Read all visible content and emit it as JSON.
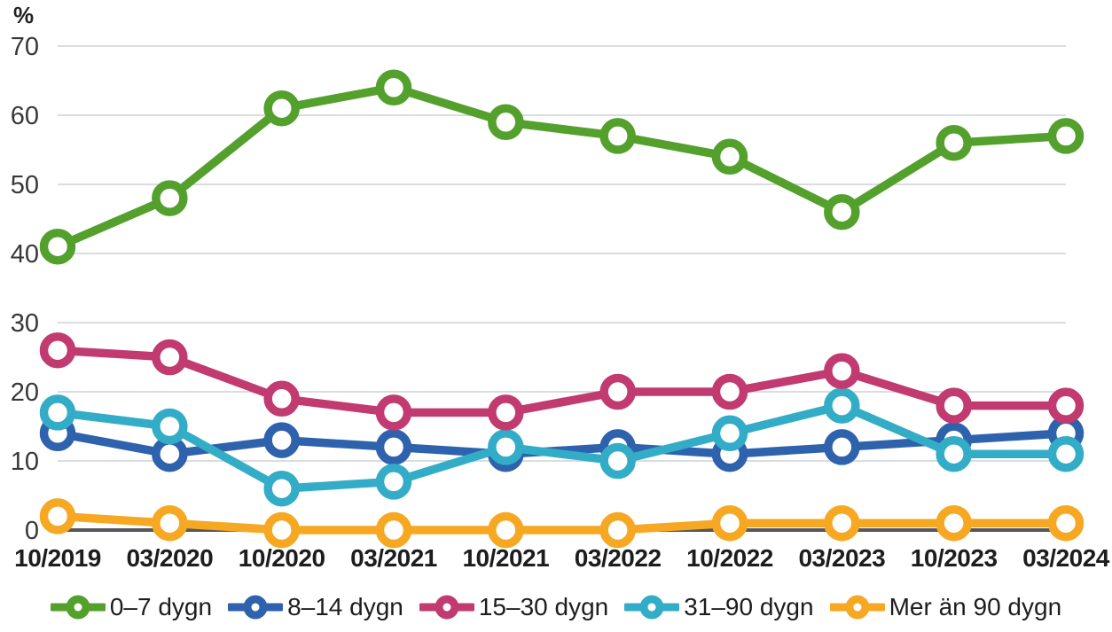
{
  "chart_data": {
    "type": "line",
    "title": "",
    "xlabel": "",
    "ylabel": "%",
    "unit_label": "%",
    "categories": [
      "10/2019",
      "03/2020",
      "10/2020",
      "03/2021",
      "10/2021",
      "03/2022",
      "10/2022",
      "03/2023",
      "10/2023",
      "03/2024"
    ],
    "series": [
      {
        "name": "0–7 dygn",
        "color": "#53a02c",
        "values": [
          41,
          48,
          61,
          64,
          59,
          57,
          54,
          46,
          56,
          57
        ]
      },
      {
        "name": "8–14 dygn",
        "color": "#2e62ad",
        "values": [
          14,
          11,
          13,
          12,
          11,
          12,
          11,
          12,
          13,
          14
        ]
      },
      {
        "name": "15–30 dygn",
        "color": "#c13a70",
        "values": [
          26,
          25,
          19,
          17,
          17,
          20,
          20,
          23,
          18,
          18
        ]
      },
      {
        "name": "31–90 dygn",
        "color": "#33adc7",
        "values": [
          17,
          15,
          6,
          7,
          12,
          10,
          14,
          18,
          11,
          11
        ]
      },
      {
        "name": "Mer än 90 dygn",
        "color": "#f7a823",
        "values": [
          2,
          1,
          0,
          0,
          0,
          0,
          1,
          1,
          1,
          1
        ]
      }
    ],
    "draw_order": [
      0,
      1,
      3,
      2,
      4
    ],
    "ylim": [
      0,
      70
    ],
    "yticks": [
      0,
      10,
      20,
      30,
      40,
      50,
      60,
      70
    ],
    "grid": "horizontal",
    "legend_position": "bottom"
  },
  "colors": {
    "background": "#ffffff",
    "gridline": "#d9dce0",
    "axis_line": "#55575a",
    "tick_text": "#383838",
    "label_text": "#1d1d1d"
  }
}
